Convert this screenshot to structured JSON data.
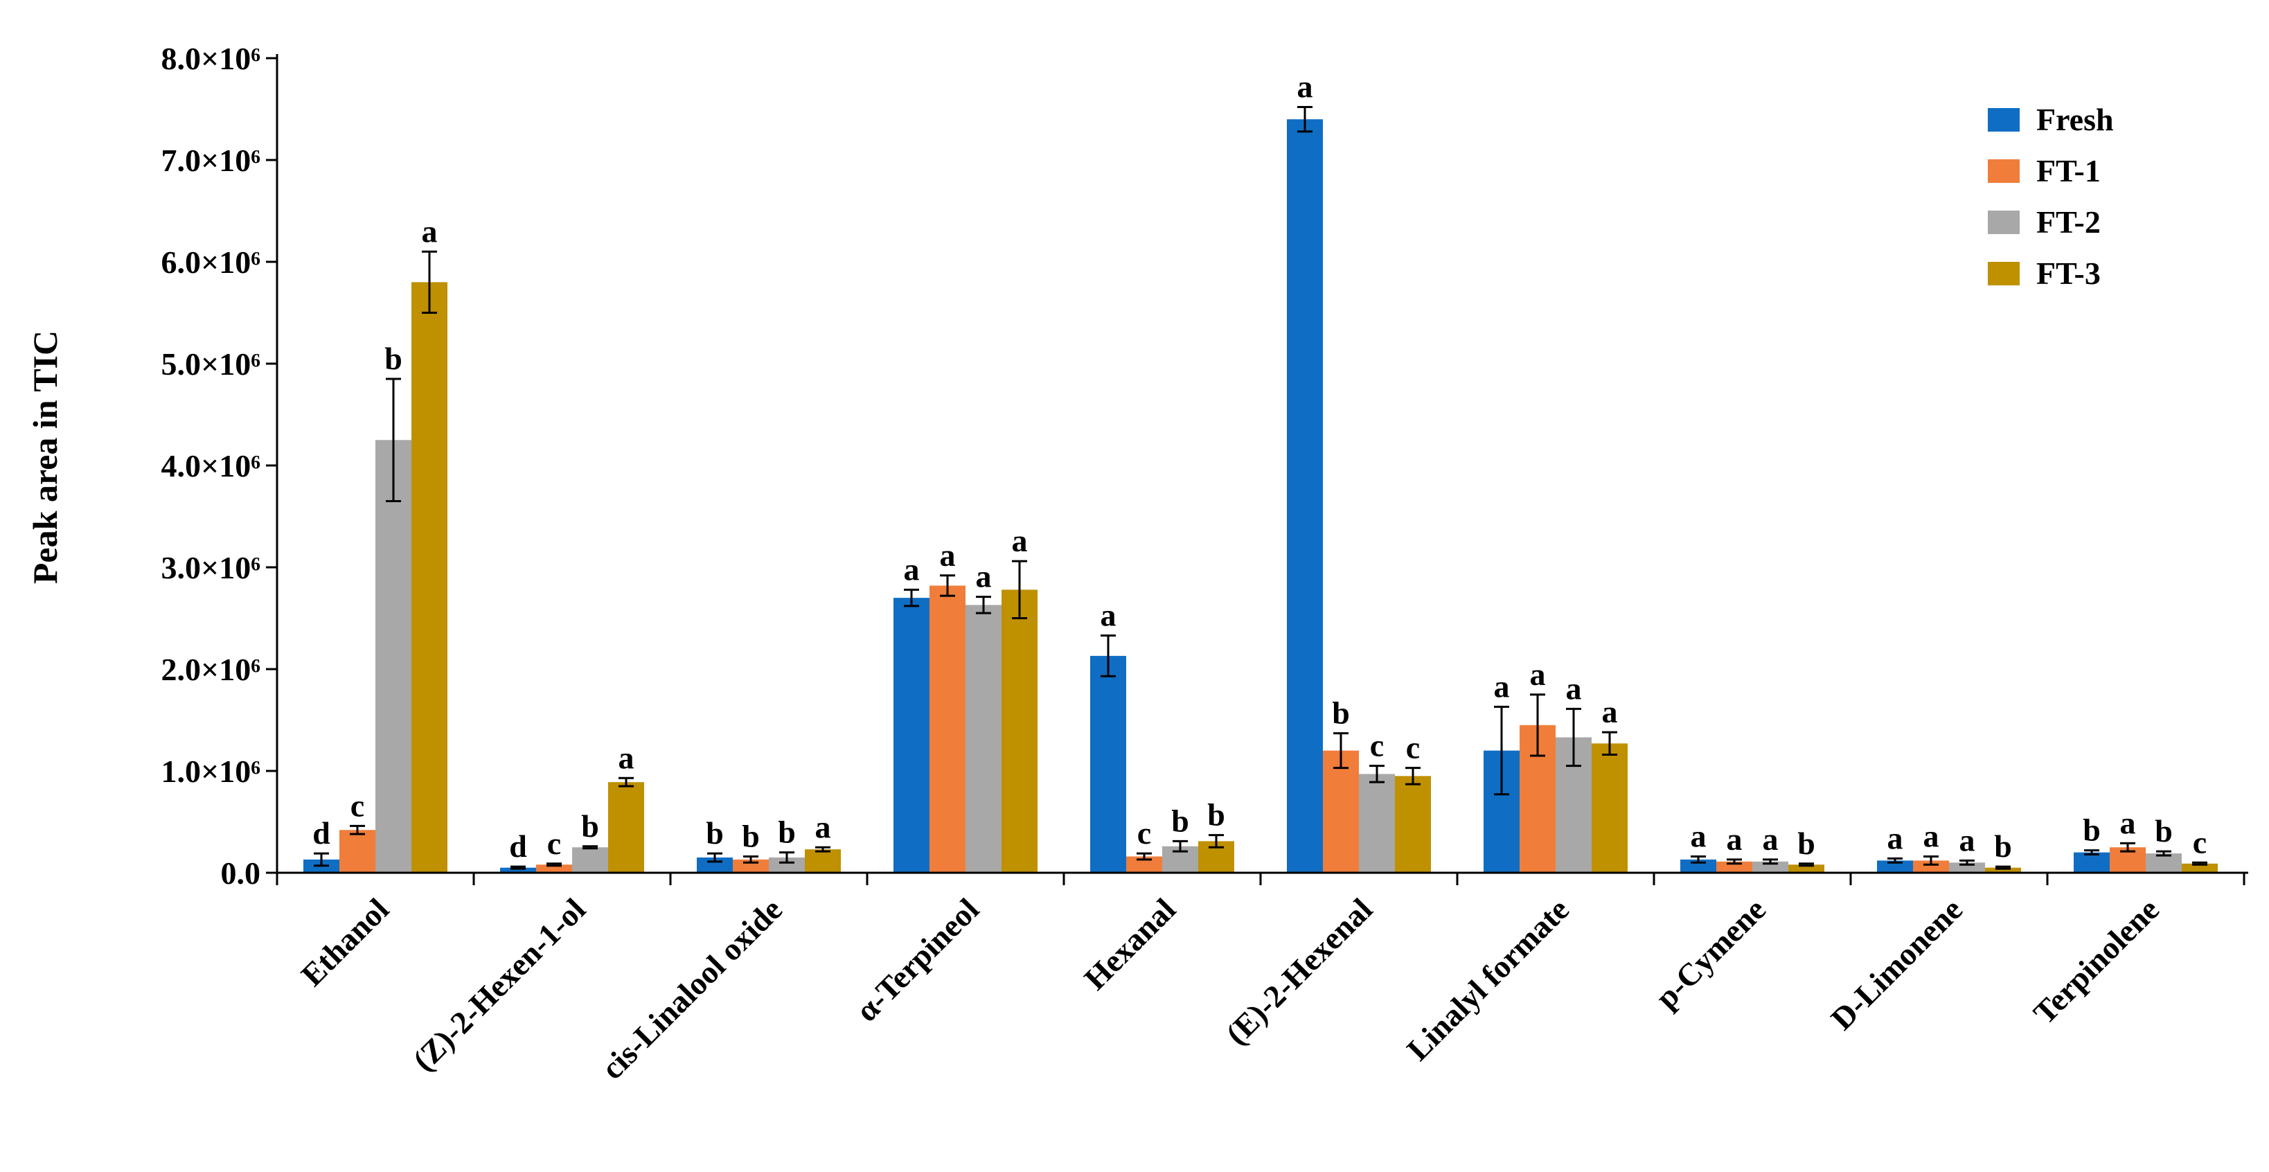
{
  "chart_data": {
    "type": "bar",
    "ylabel": "Peak area in TIC",
    "xlabel": "",
    "ylim": [
      0,
      8000000
    ],
    "yticks": [
      {
        "value": 0,
        "label": "0.0"
      },
      {
        "value": 1000000,
        "label": "1.0×10⁶"
      },
      {
        "value": 2000000,
        "label": "2.0×10⁶"
      },
      {
        "value": 3000000,
        "label": "3.0×10⁶"
      },
      {
        "value": 4000000,
        "label": "4.0×10⁶"
      },
      {
        "value": 5000000,
        "label": "5.0×10⁶"
      },
      {
        "value": 6000000,
        "label": "6.0×10⁶"
      },
      {
        "value": 7000000,
        "label": "7.0×10⁶"
      },
      {
        "value": 8000000,
        "label": "8.0×10⁶"
      }
    ],
    "grid": false,
    "legend_position": "top-right",
    "categories": [
      "Ethanol",
      "(Z)-2-Hexen-1-ol",
      "cis-Linalool oxide",
      "α-Terpineol",
      "Hexanal",
      "(E)-2-Hexenal",
      "Linalyl formate",
      "p-Cymene",
      "D-Limonene",
      "Terpinolene"
    ],
    "series": [
      {
        "name": "Fresh",
        "color": "#0f6ec4",
        "values": [
          130000,
          50000,
          150000,
          2700000,
          2130000,
          7400000,
          1200000,
          130000,
          120000,
          200000
        ],
        "errors": [
          60000,
          10000,
          40000,
          80000,
          200000,
          120000,
          430000,
          30000,
          20000,
          20000
        ],
        "letters": [
          "d",
          "d",
          "b",
          "a",
          "a",
          "a",
          "a",
          "a",
          "a",
          "b"
        ]
      },
      {
        "name": "FT-1",
        "color": "#f07d3a",
        "values": [
          420000,
          80000,
          130000,
          2820000,
          160000,
          1200000,
          1450000,
          110000,
          120000,
          250000
        ],
        "errors": [
          40000,
          10000,
          30000,
          100000,
          30000,
          170000,
          300000,
          20000,
          40000,
          40000
        ],
        "letters": [
          "c",
          "c",
          "b",
          "a",
          "c",
          "b",
          "a",
          "a",
          "a",
          "a"
        ]
      },
      {
        "name": "FT-2",
        "color": "#a8a8a8",
        "values": [
          4250000,
          250000,
          150000,
          2630000,
          260000,
          970000,
          1330000,
          110000,
          100000,
          190000
        ],
        "errors": [
          600000,
          10000,
          50000,
          80000,
          50000,
          80000,
          280000,
          20000,
          20000,
          20000
        ],
        "letters": [
          "b",
          "b",
          "b",
          "a",
          "b",
          "c",
          "a",
          "a",
          "a",
          "b"
        ]
      },
      {
        "name": "FT-3",
        "color": "#bf9000",
        "values": [
          5800000,
          890000,
          230000,
          2780000,
          310000,
          950000,
          1270000,
          80000,
          50000,
          90000
        ],
        "errors": [
          300000,
          40000,
          20000,
          280000,
          60000,
          80000,
          110000,
          10000,
          10000,
          10000
        ],
        "letters": [
          "a",
          "a",
          "a",
          "a",
          "b",
          "c",
          "a",
          "b",
          "b",
          "c"
        ]
      }
    ]
  }
}
